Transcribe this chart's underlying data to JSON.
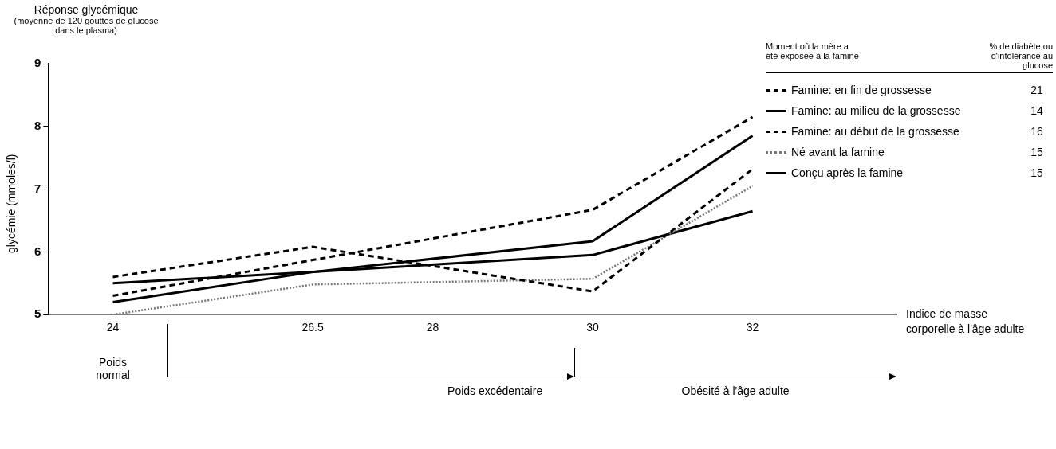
{
  "chart_data": {
    "type": "line",
    "title": "Réponse glycémique",
    "subtitle": "(moyenne de 120 gouttes de glucose dans le plasma)",
    "ylabel": "glycémie (mmoles/l)",
    "xlabel": "Indice de masse corporelle à l'âge adulte",
    "legend_title": "Moment où la mère a été exposée à la famine",
    "legend": "right",
    "xlim": [
      23.2,
      33.8
    ],
    "xticks": [
      24,
      26.5,
      28,
      30,
      32
    ],
    "ylim": [
      5,
      9
    ],
    "yticks": [
      5,
      6,
      7,
      8,
      9
    ],
    "grid": false,
    "marker": "none",
    "series": [
      {
        "name": "Famine: en fin de grossesse",
        "color": "#000000",
        "line_style": "dashed",
        "x": [
          24,
          30,
          32
        ],
        "values": [
          5.3,
          6.67,
          8.15
        ]
      },
      {
        "name": "Famine: au milieu de la grossesse",
        "color": "#000000",
        "line_style": "solid",
        "x": [
          24,
          26.5,
          30,
          32
        ],
        "values": [
          5.2,
          5.68,
          6.17,
          7.85
        ]
      },
      {
        "name": "Famine: au début de la grossesse",
        "color": "#000000",
        "line_style": "dashed",
        "x": [
          24,
          26.5,
          30,
          32
        ],
        "values": [
          5.6,
          6.08,
          5.37,
          7.32
        ]
      },
      {
        "name": "Né avant la famine",
        "color": "#777777",
        "line_style": "dotted",
        "x": [
          24,
          26.5,
          30,
          32
        ],
        "values": [
          5.0,
          5.48,
          5.57,
          7.05
        ]
      },
      {
        "name": "Conçu après la famine",
        "color": "#000000",
        "line_style": "solid",
        "x": [
          24,
          26.5,
          30,
          32
        ],
        "values": [
          5.5,
          5.68,
          5.95,
          6.65
        ]
      }
    ],
    "annotations": [
      "% de diabète ou d'intolérance au glucose",
      "21",
      "14",
      "16",
      "15",
      "15",
      "Poids normal",
      "Poids excédentaire",
      "Obésité à l'âge adulte"
    ]
  }
}
